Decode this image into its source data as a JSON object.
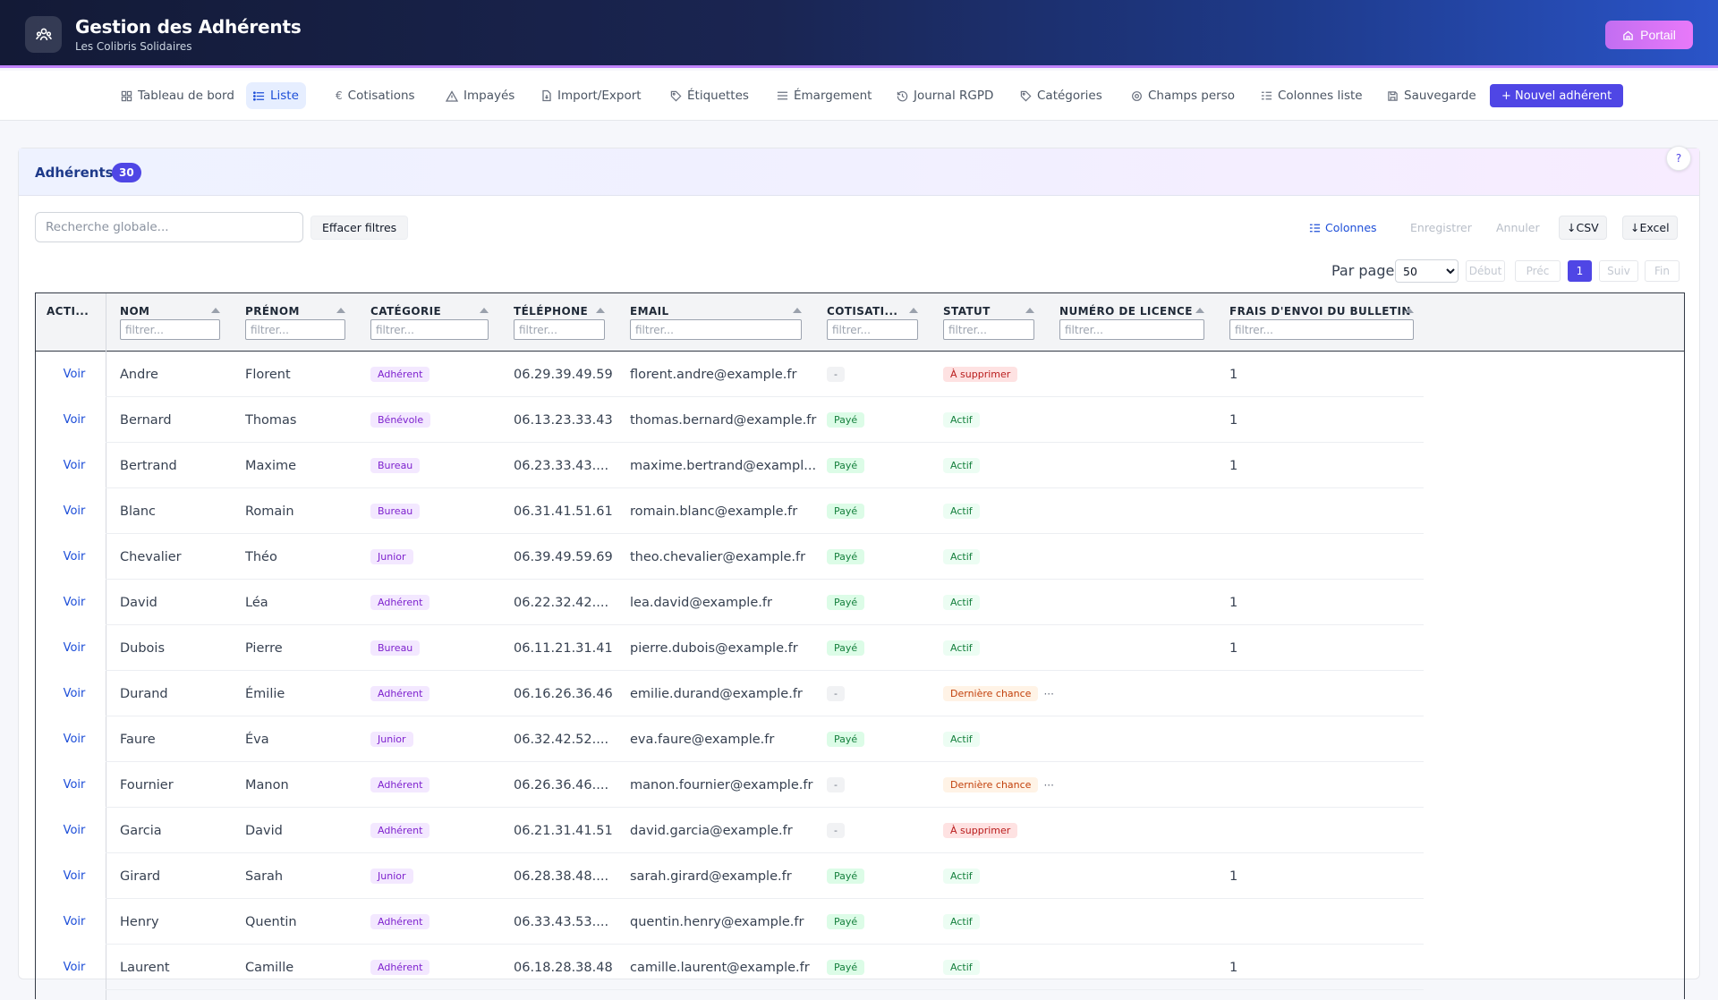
{
  "app": {
    "title": "Gestion des Adhérents",
    "subtitle": "Les Colibris Solidaires",
    "portal_label": "Portail"
  },
  "nav": {
    "items": [
      {
        "label": "Tableau de bord",
        "icon": "grid-icon"
      },
      {
        "label": "Liste",
        "icon": "list-icon",
        "active": true
      },
      {
        "label": "Cotisations",
        "icon": "euro-icon"
      },
      {
        "label": "Impayés",
        "icon": "warning-icon"
      },
      {
        "label": "Import/Export",
        "icon": "file-import-icon"
      },
      {
        "label": "Étiquettes",
        "icon": "tag-icon"
      },
      {
        "label": "Émargement",
        "icon": "lines-icon"
      },
      {
        "label": "Journal RGPD",
        "icon": "history-icon"
      },
      {
        "label": "Catégories",
        "icon": "tag-icon"
      },
      {
        "label": "Champs perso",
        "icon": "gear-icon"
      },
      {
        "label": "Colonnes liste",
        "icon": "columns-icon"
      },
      {
        "label": "Sauvegarde",
        "icon": "save-icon"
      }
    ],
    "new_member_label": "+ Nouvel adhérent"
  },
  "card": {
    "title": "Adhérents",
    "count": "30",
    "help": "?"
  },
  "toolbar": {
    "search_placeholder": "Recherche globale...",
    "clear_label": "Effacer filtres",
    "columns_label": "Colonnes",
    "save_label": "Enregistrer",
    "cancel_label": "Annuler",
    "csv_label": "↓CSV",
    "excel_label": "↓Excel"
  },
  "pagination": {
    "per_page_label": "Par page",
    "per_page_value": "50",
    "first": "Début",
    "prev": "Préc",
    "current": "1",
    "next": "Suiv",
    "last": "Fin"
  },
  "table": {
    "filter_placeholder": "filtrer...",
    "columns": [
      {
        "key": "action",
        "label": "ACTI..."
      },
      {
        "key": "nom",
        "label": "NOM"
      },
      {
        "key": "prenom",
        "label": "PRÉNOM"
      },
      {
        "key": "categorie",
        "label": "CATÉGORIE"
      },
      {
        "key": "telephone",
        "label": "TÉLÉPHONE"
      },
      {
        "key": "email",
        "label": "EMAIL"
      },
      {
        "key": "cotisation",
        "label": "COTISATI..."
      },
      {
        "key": "statut",
        "label": "STATUT"
      },
      {
        "key": "licence",
        "label": "NUMÉRO DE LICENCE"
      },
      {
        "key": "frais",
        "label": "FRAIS D'ENVOI DU BULLETIN"
      }
    ],
    "view_label": "Voir",
    "rows": [
      {
        "nom": "Andre",
        "prenom": "Florent",
        "categorie": "Adhérent",
        "telephone": "06.29.39.49.59",
        "email": "florent.andre@example.fr",
        "cotisation": "-",
        "statut": "À supprimer",
        "licence": "",
        "frais": "1"
      },
      {
        "nom": "Bernard",
        "prenom": "Thomas",
        "categorie": "Bénévole",
        "telephone": "06.13.23.33.43",
        "email": "thomas.bernard@example.fr",
        "cotisation": "Payé",
        "statut": "Actif",
        "licence": "",
        "frais": "1"
      },
      {
        "nom": "Bertrand",
        "prenom": "Maxime",
        "categorie": "Bureau",
        "telephone": "06.23.33.43....",
        "email": "maxime.bertrand@exampl...",
        "cotisation": "Payé",
        "statut": "Actif",
        "licence": "",
        "frais": "1"
      },
      {
        "nom": "Blanc",
        "prenom": "Romain",
        "categorie": "Bureau",
        "telephone": "06.31.41.51.61",
        "email": "romain.blanc@example.fr",
        "cotisation": "Payé",
        "statut": "Actif",
        "licence": "",
        "frais": ""
      },
      {
        "nom": "Chevalier",
        "prenom": "Théo",
        "categorie": "Junior",
        "telephone": "06.39.49.59.69",
        "email": "theo.chevalier@example.fr",
        "cotisation": "Payé",
        "statut": "Actif",
        "licence": "",
        "frais": ""
      },
      {
        "nom": "David",
        "prenom": "Léa",
        "categorie": "Adhérent",
        "telephone": "06.22.32.42....",
        "email": "lea.david@example.fr",
        "cotisation": "Payé",
        "statut": "Actif",
        "licence": "",
        "frais": "1"
      },
      {
        "nom": "Dubois",
        "prenom": "Pierre",
        "categorie": "Bureau",
        "telephone": "06.11.21.31.41",
        "email": "pierre.dubois@example.fr",
        "cotisation": "Payé",
        "statut": "Actif",
        "licence": "",
        "frais": "1"
      },
      {
        "nom": "Durand",
        "prenom": "Émilie",
        "categorie": "Adhérent",
        "telephone": "06.16.26.36.46",
        "email": "emilie.durand@example.fr",
        "cotisation": "-",
        "statut": "Dernière chance",
        "licence": "",
        "frais": ""
      },
      {
        "nom": "Faure",
        "prenom": "Éva",
        "categorie": "Junior",
        "telephone": "06.32.42.52....",
        "email": "eva.faure@example.fr",
        "cotisation": "Payé",
        "statut": "Actif",
        "licence": "",
        "frais": ""
      },
      {
        "nom": "Fournier",
        "prenom": "Manon",
        "categorie": "Adhérent",
        "telephone": "06.26.36.46....",
        "email": "manon.fournier@example.fr",
        "cotisation": "-",
        "statut": "Dernière chance",
        "licence": "",
        "frais": ""
      },
      {
        "nom": "Garcia",
        "prenom": "David",
        "categorie": "Adhérent",
        "telephone": "06.21.31.41.51",
        "email": "david.garcia@example.fr",
        "cotisation": "-",
        "statut": "À supprimer",
        "licence": "",
        "frais": ""
      },
      {
        "nom": "Girard",
        "prenom": "Sarah",
        "categorie": "Junior",
        "telephone": "06.28.38.48....",
        "email": "sarah.girard@example.fr",
        "cotisation": "Payé",
        "statut": "Actif",
        "licence": "",
        "frais": "1"
      },
      {
        "nom": "Henry",
        "prenom": "Quentin",
        "categorie": "Adhérent",
        "telephone": "06.33.43.53....",
        "email": "quentin.henry@example.fr",
        "cotisation": "Payé",
        "statut": "Actif",
        "licence": "",
        "frais": ""
      },
      {
        "nom": "Laurent",
        "prenom": "Camille",
        "categorie": "Adhérent",
        "telephone": "06.18.28.38.48",
        "email": "camille.laurent@example.fr",
        "cotisation": "Payé",
        "statut": "Actif",
        "licence": "",
        "frais": "1"
      }
    ]
  },
  "colors": {
    "accent": "#4f46e5",
    "header_dark": "#131a36",
    "header_blue": "#2a54c8",
    "portal": "#d473f5",
    "link": "#1d4ed8"
  }
}
